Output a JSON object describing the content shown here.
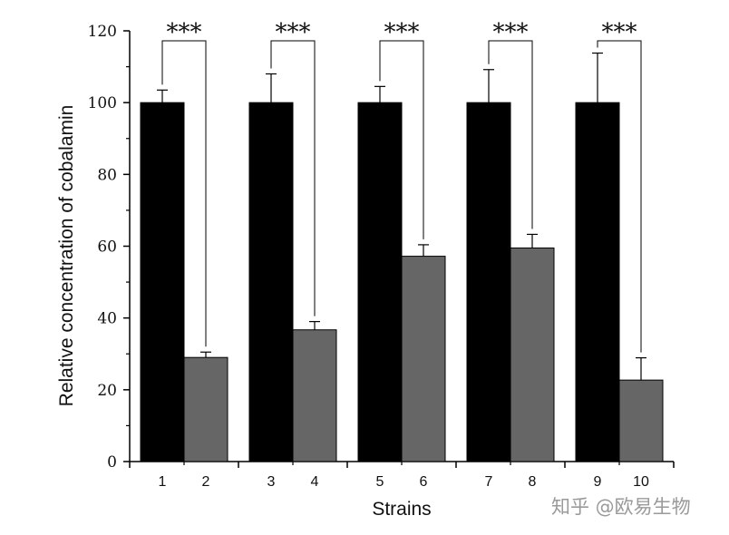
{
  "chart_data": {
    "type": "bar",
    "categories": [
      "1",
      "2",
      "3",
      "4",
      "5",
      "6",
      "7",
      "8",
      "9",
      "10"
    ],
    "values": [
      100,
      29,
      100,
      36.7,
      100,
      57.2,
      100,
      59.5,
      100,
      22.7
    ],
    "errors": [
      3.5,
      1.5,
      8,
      2.3,
      4.5,
      3.2,
      9.2,
      3.8,
      13.8,
      6.2
    ],
    "bar_colors": [
      "#000000",
      "#666666",
      "#000000",
      "#666666",
      "#000000",
      "#666666",
      "#000000",
      "#666666",
      "#000000",
      "#666666"
    ],
    "pairs": [
      [
        0,
        1
      ],
      [
        2,
        3
      ],
      [
        4,
        5
      ],
      [
        6,
        7
      ],
      [
        8,
        9
      ]
    ],
    "significance": [
      "***",
      "***",
      "***",
      "***",
      "***"
    ],
    "xlabel": "Strains",
    "ylabel": "Relative concentration of cobalamin",
    "ylim": [
      0,
      120
    ],
    "yticks": [
      0,
      20,
      40,
      60,
      80,
      100,
      120
    ],
    "grid": false,
    "legend": "none"
  },
  "watermark": "知乎 @欧易生物"
}
